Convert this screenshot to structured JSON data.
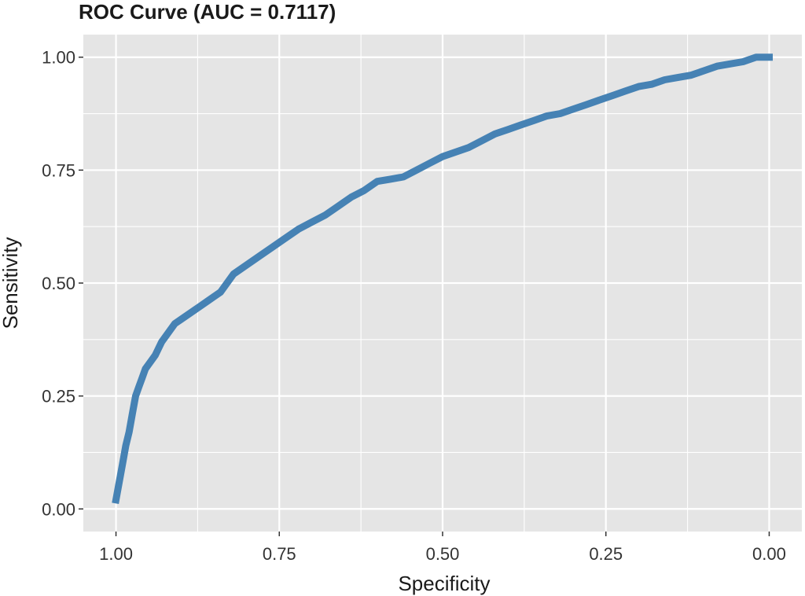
{
  "chart_data": {
    "type": "line",
    "title": "ROC Curve (AUC = 0.7117)",
    "xlabel": "Specificity",
    "ylabel": "Sensitivity",
    "x_reversed": true,
    "xlim": [
      1.0,
      0.0
    ],
    "ylim": [
      0.0,
      1.0
    ],
    "x_ticks": [
      1.0,
      0.75,
      0.5,
      0.25,
      0.0
    ],
    "x_tick_labels": [
      "1.00",
      "0.75",
      "0.50",
      "0.25",
      "0.00"
    ],
    "y_ticks": [
      0.0,
      0.25,
      0.5,
      0.75,
      1.0
    ],
    "y_tick_labels": [
      "0.00",
      "0.25",
      "0.50",
      "0.75",
      "1.00"
    ],
    "grid": true,
    "background": "#e5e5e5",
    "series": [
      {
        "color": "#4682b4",
        "x": [
          1.0,
          0.995,
          0.99,
          0.985,
          0.98,
          0.975,
          0.97,
          0.965,
          0.96,
          0.955,
          0.95,
          0.94,
          0.93,
          0.92,
          0.91,
          0.9,
          0.88,
          0.86,
          0.84,
          0.82,
          0.8,
          0.78,
          0.76,
          0.74,
          0.72,
          0.7,
          0.68,
          0.66,
          0.64,
          0.62,
          0.6,
          0.58,
          0.56,
          0.54,
          0.52,
          0.5,
          0.48,
          0.46,
          0.44,
          0.42,
          0.4,
          0.38,
          0.36,
          0.34,
          0.32,
          0.3,
          0.28,
          0.26,
          0.24,
          0.22,
          0.2,
          0.18,
          0.16,
          0.14,
          0.12,
          0.1,
          0.08,
          0.06,
          0.04,
          0.02,
          0.0
        ],
        "y": [
          0.02,
          0.06,
          0.1,
          0.14,
          0.17,
          0.21,
          0.25,
          0.27,
          0.29,
          0.31,
          0.32,
          0.34,
          0.37,
          0.39,
          0.41,
          0.42,
          0.44,
          0.46,
          0.48,
          0.52,
          0.54,
          0.56,
          0.58,
          0.6,
          0.62,
          0.635,
          0.65,
          0.67,
          0.69,
          0.705,
          0.725,
          0.73,
          0.735,
          0.75,
          0.765,
          0.78,
          0.79,
          0.8,
          0.815,
          0.83,
          0.84,
          0.85,
          0.86,
          0.87,
          0.875,
          0.885,
          0.895,
          0.905,
          0.915,
          0.925,
          0.935,
          0.94,
          0.95,
          0.955,
          0.96,
          0.97,
          0.98,
          0.985,
          0.99,
          1.0,
          1.0
        ]
      }
    ]
  }
}
